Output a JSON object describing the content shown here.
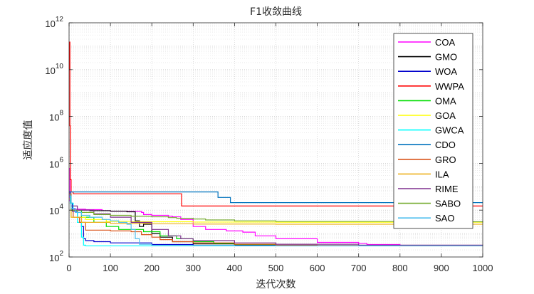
{
  "chart_data": {
    "type": "line",
    "title": "F1收敛曲线",
    "xlabel": "迭代次数",
    "ylabel": "适应度值",
    "xlim": [
      0,
      1000
    ],
    "ylim": [
      100,
      1000000000000
    ],
    "yscale": "log",
    "x_ticks": [
      "0",
      "100",
      "200",
      "300",
      "400",
      "500",
      "600",
      "700",
      "800",
      "900",
      "1000"
    ],
    "y_ticks": [
      {
        "base": "10",
        "exp": "2"
      },
      {
        "base": "10",
        "exp": "4"
      },
      {
        "base": "10",
        "exp": "6"
      },
      {
        "base": "10",
        "exp": "8"
      },
      {
        "base": "10",
        "exp": "10"
      },
      {
        "base": "10",
        "exp": "12"
      }
    ],
    "grid": true,
    "legend_position": "top-right",
    "series": [
      {
        "name": "COA",
        "color": "#ff00ff",
        "points": [
          [
            0,
            600000
          ],
          [
            2,
            25000
          ],
          [
            5,
            12000
          ],
          [
            10,
            11000
          ],
          [
            40,
            10500
          ],
          [
            80,
            9500
          ],
          [
            100,
            9000
          ],
          [
            140,
            8800
          ],
          [
            175,
            8000
          ],
          [
            180,
            6500
          ],
          [
            200,
            6000
          ],
          [
            240,
            5500
          ],
          [
            250,
            5200
          ],
          [
            270,
            4000
          ],
          [
            300,
            2000
          ],
          [
            330,
            1500
          ],
          [
            380,
            1300
          ],
          [
            420,
            1150
          ],
          [
            450,
            800
          ],
          [
            500,
            600
          ],
          [
            600,
            420
          ],
          [
            700,
            380
          ],
          [
            720,
            340
          ],
          [
            800,
            310
          ],
          [
            900,
            300
          ],
          [
            1000,
            300
          ]
        ]
      },
      {
        "name": "GMO",
        "color": "#000000",
        "points": [
          [
            0,
            50000
          ],
          [
            5,
            10000
          ],
          [
            50,
            9500
          ],
          [
            100,
            9000
          ],
          [
            140,
            8500
          ],
          [
            160,
            3500
          ],
          [
            170,
            2000
          ],
          [
            180,
            2500
          ],
          [
            200,
            1000
          ],
          [
            220,
            700
          ],
          [
            250,
            450
          ],
          [
            300,
            360
          ],
          [
            400,
            320
          ],
          [
            500,
            305
          ],
          [
            600,
            300
          ],
          [
            1000,
            300
          ]
        ]
      },
      {
        "name": "WOA",
        "color": "#0000cc",
        "points": [
          [
            0,
            60000
          ],
          [
            3,
            20000
          ],
          [
            8,
            9000
          ],
          [
            20,
            5000
          ],
          [
            30,
            2000
          ],
          [
            35,
            600
          ],
          [
            40,
            500
          ],
          [
            60,
            450
          ],
          [
            100,
            400
          ],
          [
            200,
            340
          ],
          [
            300,
            310
          ],
          [
            500,
            300
          ],
          [
            1000,
            300
          ]
        ]
      },
      {
        "name": "WWPA",
        "color": "#ff0000",
        "points": [
          [
            0,
            10000000000
          ],
          [
            1,
            150000000000
          ],
          [
            2,
            40000000
          ],
          [
            3,
            200000
          ],
          [
            5,
            60000
          ],
          [
            10,
            50000
          ],
          [
            268,
            50000
          ],
          [
            272,
            15000
          ],
          [
            1000,
            15000
          ]
        ]
      },
      {
        "name": "OMA",
        "color": "#00dd00",
        "points": [
          [
            0,
            40000
          ],
          [
            5,
            10000
          ],
          [
            30,
            5000
          ],
          [
            60,
            3000
          ],
          [
            90,
            2000
          ],
          [
            120,
            1500
          ],
          [
            180,
            1200
          ],
          [
            220,
            800
          ],
          [
            260,
            600
          ],
          [
            300,
            450
          ],
          [
            350,
            380
          ],
          [
            400,
            340
          ],
          [
            500,
            310
          ],
          [
            600,
            300
          ],
          [
            1000,
            300
          ]
        ]
      },
      {
        "name": "GOA",
        "color": "#ffff00",
        "points": [
          [
            0,
            30000
          ],
          [
            5,
            5000
          ],
          [
            40,
            4000
          ],
          [
            90,
            3300
          ],
          [
            150,
            3200
          ],
          [
            300,
            3100
          ],
          [
            500,
            3050
          ],
          [
            1000,
            3000
          ]
        ]
      },
      {
        "name": "GWCA",
        "color": "#00ffff",
        "points": [
          [
            0,
            50000
          ],
          [
            3,
            20000
          ],
          [
            10,
            10000
          ],
          [
            20,
            3000
          ],
          [
            30,
            700
          ],
          [
            35,
            320
          ],
          [
            40,
            300
          ],
          [
            1000,
            300
          ]
        ]
      },
      {
        "name": "CDO",
        "color": "#0072bd",
        "points": [
          [
            0,
            60000
          ],
          [
            5,
            60000
          ],
          [
            355,
            60000
          ],
          [
            360,
            35000
          ],
          [
            385,
            35000
          ],
          [
            390,
            21000
          ],
          [
            1000,
            21000
          ]
        ]
      },
      {
        "name": "GRO",
        "color": "#d95319",
        "points": [
          [
            0,
            50000
          ],
          [
            5,
            10000
          ],
          [
            10,
            5000
          ],
          [
            25,
            3000
          ],
          [
            40,
            1400
          ],
          [
            100,
            1300
          ],
          [
            150,
            1200
          ],
          [
            175,
            900
          ],
          [
            200,
            700
          ],
          [
            220,
            550
          ],
          [
            250,
            450
          ],
          [
            300,
            400
          ],
          [
            400,
            350
          ],
          [
            500,
            320
          ],
          [
            600,
            310
          ],
          [
            800,
            300
          ],
          [
            1000,
            300
          ]
        ]
      },
      {
        "name": "ILA",
        "color": "#edb120",
        "points": [
          [
            0,
            40000
          ],
          [
            5,
            5000
          ],
          [
            30,
            3000
          ],
          [
            100,
            2700
          ],
          [
            200,
            2600
          ],
          [
            300,
            2550
          ],
          [
            500,
            2500
          ],
          [
            1000,
            2500
          ]
        ]
      },
      {
        "name": "RIME",
        "color": "#7e2f8e",
        "points": [
          [
            0,
            40000
          ],
          [
            5,
            15000
          ],
          [
            20,
            10000
          ],
          [
            60,
            7000
          ],
          [
            100,
            5000
          ],
          [
            150,
            3000
          ],
          [
            200,
            1500
          ],
          [
            240,
            800
          ],
          [
            270,
            600
          ],
          [
            300,
            500
          ],
          [
            400,
            400
          ],
          [
            500,
            350
          ],
          [
            700,
            320
          ],
          [
            1000,
            310
          ]
        ]
      },
      {
        "name": "SABO",
        "color": "#77ac30",
        "points": [
          [
            0,
            40000
          ],
          [
            5,
            10000
          ],
          [
            20,
            8000
          ],
          [
            60,
            6500
          ],
          [
            100,
            6000
          ],
          [
            150,
            5500
          ],
          [
            200,
            5200
          ],
          [
            240,
            4800
          ],
          [
            260,
            4500
          ],
          [
            300,
            4200
          ],
          [
            330,
            3800
          ],
          [
            400,
            3500
          ],
          [
            500,
            3300
          ],
          [
            800,
            3200
          ],
          [
            1000,
            3000
          ]
        ]
      },
      {
        "name": "SAO",
        "color": "#4dbeee",
        "points": [
          [
            0,
            40000
          ],
          [
            5,
            12000
          ],
          [
            15,
            8000
          ],
          [
            30,
            6000
          ],
          [
            50,
            5000
          ],
          [
            80,
            4000
          ],
          [
            100,
            3500
          ],
          [
            120,
            3000
          ],
          [
            140,
            2500
          ],
          [
            150,
            1500
          ],
          [
            160,
            600
          ],
          [
            170,
            350
          ],
          [
            200,
            310
          ],
          [
            400,
            300
          ],
          [
            1000,
            300
          ]
        ]
      }
    ]
  }
}
